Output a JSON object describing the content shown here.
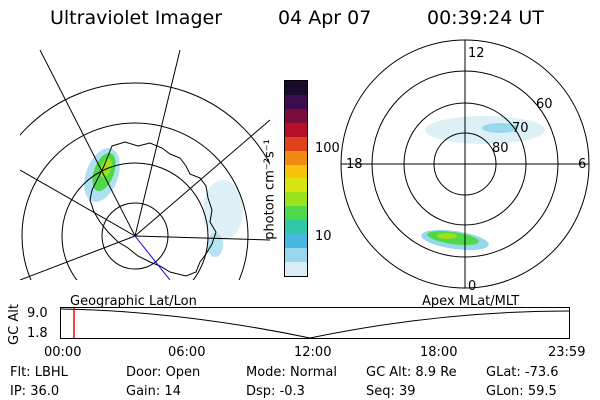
{
  "header": {
    "title": "Ultraviolet Imager",
    "date": "04 Apr 07",
    "time": "00:39:24 UT"
  },
  "colorbar": {
    "unit_label": "photon cm⁻²s⁻¹",
    "tick_labels": [
      "100",
      "10"
    ],
    "colors": [
      "#1a0a2e",
      "#3b0b4d",
      "#7a0c3e",
      "#b5102a",
      "#e0421c",
      "#f08a10",
      "#f6c40a",
      "#d8e410",
      "#9be21a",
      "#4fd84a",
      "#2ec8a8",
      "#48b8e0",
      "#98d8ec",
      "#d8eef4"
    ]
  },
  "left_map": {
    "label": "Geographic Lat/Lon"
  },
  "right_map": {
    "label": "Apex MLat/MLT",
    "mlt_labels": {
      "top": "12",
      "bottom": "0",
      "left": "18",
      "right": "6"
    },
    "lat_labels": [
      "60",
      "70",
      "80"
    ]
  },
  "altitude_plot": {
    "y_axis_label": "GC Alt",
    "y_ticks": [
      "9.0",
      "1.8"
    ],
    "x_ticks": [
      "00:00",
      "06:00",
      "12:00",
      "18:00",
      "23:59"
    ],
    "marker_color": "#ff0000"
  },
  "status": {
    "row1": [
      {
        "key": "Flt:",
        "value": "LBHL"
      },
      {
        "key": "Door:",
        "value": "Open"
      },
      {
        "key": "Mode:",
        "value": "Normal"
      },
      {
        "key": "GC Alt:",
        "value": "8.9 Re"
      },
      {
        "key": "GLat:",
        "value": "-73.6"
      }
    ],
    "row2": [
      {
        "key": "IP:",
        "value": "36.0"
      },
      {
        "key": "Gain:",
        "value": "14"
      },
      {
        "key": "Dsp:",
        "value": "-0.3"
      },
      {
        "key": "Seq:",
        "value": "39"
      },
      {
        "key": "GLon:",
        "value": "59.5"
      }
    ]
  }
}
